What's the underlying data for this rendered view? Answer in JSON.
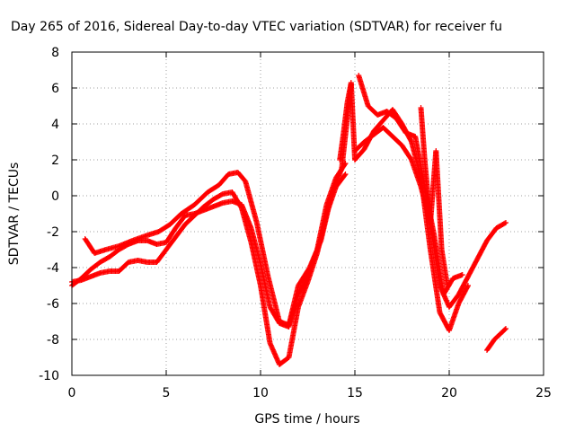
{
  "chart_data": {
    "type": "scatter",
    "title": "Day 265 of 2016, Sidereal Day-to-day VTEC variation (SDTVAR) for receiver fu",
    "xlabel": "GPS time / hours",
    "ylabel": "SDTVAR / TECUs",
    "xlim": [
      0,
      25
    ],
    "ylim": [
      -10,
      8
    ],
    "xticks": [
      0,
      5,
      10,
      15,
      20,
      25
    ],
    "yticks": [
      -10,
      -8,
      -6,
      -4,
      -2,
      0,
      2,
      4,
      6,
      8
    ],
    "grid": true,
    "marker": "plus",
    "color": "#ff0000",
    "series": [
      {
        "x": [
          0.0,
          0.5,
          1.0,
          1.5,
          2.0,
          2.5,
          3.0,
          3.5,
          4.0,
          4.5,
          5.0,
          5.5,
          6.0,
          6.5,
          7.0,
          7.5,
          8.0,
          8.5,
          9.0,
          9.5,
          10.0,
          10.5,
          11.0,
          11.5,
          12.0,
          12.5,
          13.0,
          13.5,
          14.0,
          14.5
        ],
        "y": [
          -5.0,
          -4.6,
          -4.1,
          -3.7,
          -3.4,
          -3.0,
          -2.7,
          -2.5,
          -2.5,
          -2.7,
          -2.6,
          -1.8,
          -1.1,
          -1.0,
          -0.8,
          -0.6,
          -0.4,
          -0.3,
          -0.5,
          -1.8,
          -3.8,
          -6.2,
          -7.1,
          -7.3,
          -5.5,
          -4.5,
          -3.0,
          -0.5,
          1.0,
          1.8
        ]
      },
      {
        "x": [
          0.0,
          0.5,
          1.0,
          1.5,
          2.0,
          2.5,
          3.0,
          3.5,
          4.0,
          4.5,
          5.0,
          5.5,
          6.0,
          6.5,
          7.0,
          7.5,
          8.0,
          8.5,
          9.0,
          9.5,
          10.0,
          10.5,
          11.0,
          11.5,
          12.0,
          12.5,
          13.0,
          13.5,
          14.0,
          14.5
        ],
        "y": [
          -4.8,
          -4.7,
          -4.5,
          -4.3,
          -4.2,
          -4.2,
          -3.7,
          -3.6,
          -3.7,
          -3.7,
          -3.0,
          -2.3,
          -1.6,
          -1.1,
          -0.6,
          -0.2,
          0.1,
          0.2,
          -0.7,
          -2.6,
          -5.0,
          -8.2,
          -9.4,
          -9.0,
          -6.2,
          -4.8,
          -3.2,
          -1.0,
          0.5,
          1.2
        ]
      },
      {
        "x": [
          0.7,
          1.2,
          1.8,
          2.5,
          3.2,
          4.0,
          4.6,
          5.2,
          5.8,
          6.5,
          7.2,
          7.8,
          8.3,
          8.8,
          9.2,
          9.8,
          10.4,
          11.0,
          11.5,
          12.0,
          12.6,
          13.2,
          13.8,
          14.3,
          14.8
        ],
        "y": [
          -2.4,
          -3.2,
          -3.0,
          -2.8,
          -2.5,
          -2.2,
          -2.0,
          -1.6,
          -1.0,
          -0.5,
          0.2,
          0.6,
          1.2,
          1.3,
          0.8,
          -1.5,
          -4.5,
          -7.0,
          -7.2,
          -5.0,
          -4.0,
          -2.5,
          0.2,
          1.5,
          6.2
        ]
      },
      {
        "x": [
          15.0,
          15.5,
          16.0,
          16.5,
          17.0,
          17.5,
          18.0,
          18.5,
          19.0,
          19.5,
          20.0,
          20.5,
          21.0,
          21.5,
          22.0,
          22.5,
          23.0
        ],
        "y": [
          2.5,
          3.0,
          3.4,
          3.8,
          3.3,
          2.8,
          2.0,
          0.5,
          -1.5,
          -5.0,
          -6.2,
          -5.5,
          -4.5,
          -3.5,
          -2.5,
          -1.8,
          -1.5
        ]
      },
      {
        "x": [
          15.0,
          15.5,
          16.0,
          16.5,
          17.0,
          17.5,
          18.0,
          18.5,
          19.0,
          19.5,
          20.0,
          20.5,
          21.0
        ],
        "y": [
          2.0,
          2.6,
          3.6,
          4.2,
          4.8,
          4.0,
          3.0,
          1.0,
          -3.0,
          -6.5,
          -7.5,
          -6.0,
          -5.0
        ]
      },
      {
        "x": [
          15.2,
          15.7,
          16.2,
          16.7,
          17.2,
          17.7,
          18.2,
          18.7,
          19.2,
          19.7,
          20.2,
          20.7
        ],
        "y": [
          6.7,
          5.0,
          4.5,
          4.7,
          4.3,
          3.5,
          3.3,
          0.5,
          -2.2,
          -5.5,
          -4.6,
          -4.4
        ]
      },
      {
        "x": [
          18.5,
          18.7,
          19.0,
          19.3,
          19.6,
          19.9
        ],
        "y": [
          4.9,
          2.0,
          -1.5,
          2.5,
          -3.0,
          -5.0
        ]
      },
      {
        "x": [
          14.2,
          14.4,
          14.6,
          14.8,
          15.0
        ],
        "y": [
          2.0,
          3.5,
          5.2,
          6.3,
          2.0
        ]
      },
      {
        "x": [
          22.0,
          22.2,
          22.4,
          22.6,
          22.8,
          23.0
        ],
        "y": [
          -8.6,
          -8.3,
          -8.0,
          -7.8,
          -7.6,
          -7.4
        ]
      }
    ]
  }
}
